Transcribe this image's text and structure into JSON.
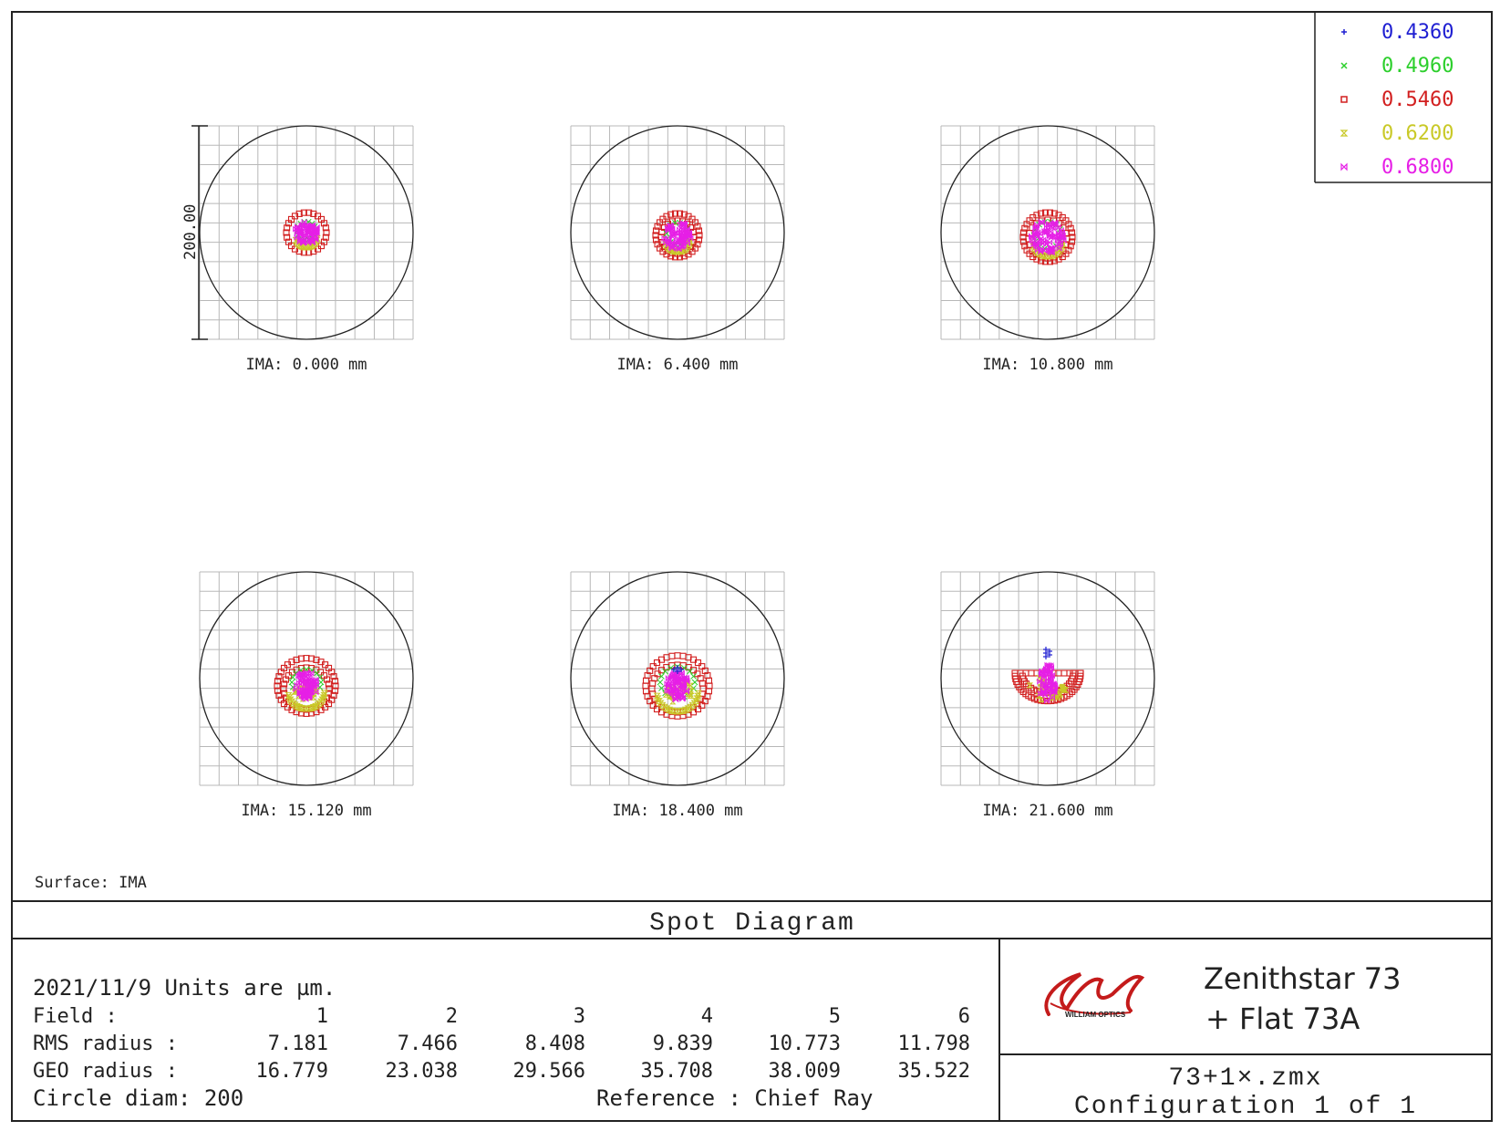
{
  "legend": {
    "wavelengths": [
      {
        "value": "0.4360",
        "color": "#1f1fd2",
        "marker": "plus"
      },
      {
        "value": "0.4960",
        "color": "#2ccf2c",
        "marker": "cross"
      },
      {
        "value": "0.5460",
        "color": "#d21f1f",
        "marker": "square"
      },
      {
        "value": "0.6200",
        "color": "#c9c928",
        "marker": "hourglass"
      },
      {
        "value": "0.6800",
        "color": "#e61fe6",
        "marker": "bowtie"
      }
    ]
  },
  "scale_bar_label": "200.00",
  "fields": [
    {
      "label": "IMA: 0.000 mm"
    },
    {
      "label": "IMA: 6.400 mm"
    },
    {
      "label": "IMA: 10.800 mm"
    },
    {
      "label": "IMA: 15.120 mm"
    },
    {
      "label": "IMA: 18.400 mm"
    },
    {
      "label": "IMA: 21.600 mm"
    }
  ],
  "surface_label": "Surface: IMA",
  "title": "Spot Diagram",
  "info": {
    "date_units": "2021/11/9  Units are µm.",
    "field_row_label": "Field      :",
    "field_numbers": [
      "1",
      "2",
      "3",
      "4",
      "5",
      "6"
    ],
    "rms_label": "RMS radius :",
    "rms_values": [
      "7.181",
      "7.466",
      "8.408",
      "9.839",
      "10.773",
      "11.798"
    ],
    "geo_label": "GEO radius :",
    "geo_values": [
      "16.779",
      "23.038",
      "29.566",
      "35.708",
      "38.009",
      "35.522"
    ],
    "circle_diam": "Circle diam: 200",
    "reference": "Reference  : Chief Ray"
  },
  "logo": {
    "brand_text": "WILLIAM OPTICS"
  },
  "product": {
    "line1": "Zenithstar 73",
    "line2": "+ Flat 73A"
  },
  "file": {
    "name": "73+1×.zmx",
    "configuration": "Configuration 1 of 1"
  }
}
